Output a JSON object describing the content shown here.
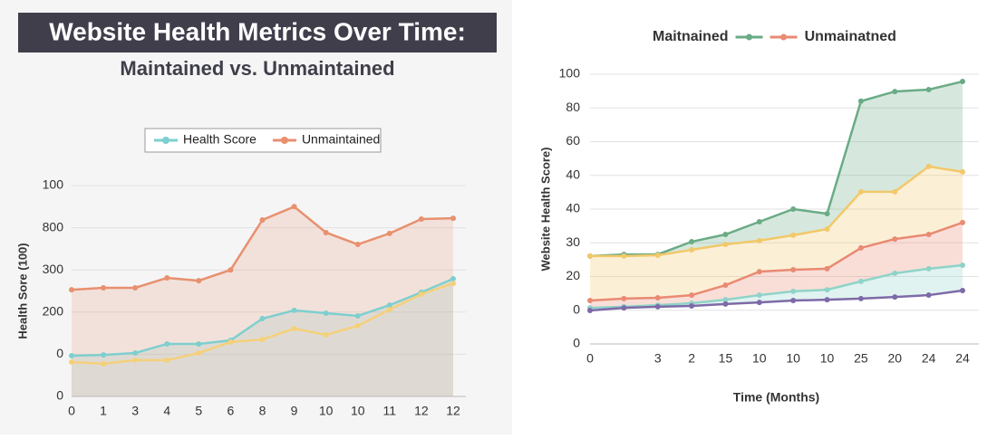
{
  "chart_data": [
    {
      "type": "area",
      "title": "Website Health Metrics Over Time:",
      "subtitle": "Maintained vs. Unmaintained",
      "y_label": "Health Sore (100)",
      "area_fill": "to_baseline",
      "grid": true,
      "categories": [
        "0",
        "1",
        "3",
        "4",
        "5",
        "6",
        "8",
        "9",
        "10",
        "10",
        "11",
        "12",
        "12"
      ],
      "ylim": [
        0,
        100
      ],
      "yticks": [
        0,
        {
          "value": 20,
          "label": "0"
        },
        {
          "value": 40,
          "label": "200"
        },
        {
          "value": 60,
          "label": "300"
        },
        {
          "value": 80,
          "label": "800"
        },
        100
      ],
      "series": [
        {
          "name": "Health Score",
          "color": "#7ecfcf",
          "values": [
            19.3,
            19.7,
            20.6,
            24.9,
            24.9,
            26.6,
            36.9,
            40.8,
            39.5,
            38.2,
            43.3,
            49.4,
            55.8
          ]
        },
        {
          "name": "Unmaintained",
          "color": "#e8906f",
          "values": [
            50.6,
            51.5,
            51.5,
            56.2,
            54.9,
            60,
            83.7,
            90,
            77.7,
            72.1,
            77.3,
            84.1,
            84.5
          ]
        },
        {
          "color": "#f5d07a",
          "values": [
            16.3,
            15.5,
            17.2,
            17.2,
            20.6,
            25.8,
            27,
            32.2,
            29.2,
            33.5,
            41.2,
            48.5,
            53.6
          ]
        }
      ]
    },
    {
      "type": "area",
      "x_label": "Time (Months)",
      "y_label": "Website Health Score)",
      "area_fill": "between_series",
      "grid": true,
      "categories": [
        "0",
        null,
        "3",
        "2",
        "15",
        "10",
        "10",
        "10",
        "25",
        "20",
        "24",
        "24"
      ],
      "ylim": [
        0,
        100
      ],
      "yticks": [
        0,
        {
          "value": 12.5,
          "label": "0"
        },
        {
          "value": 25,
          "label": "20"
        },
        {
          "value": 37.5,
          "label": "30"
        },
        {
          "value": 50,
          "label": "40"
        },
        {
          "value": 62.5,
          "label": "40"
        },
        {
          "value": 75,
          "label": "60"
        },
        {
          "value": 87.5,
          "label": "80"
        },
        100
      ],
      "series": [
        {
          "name": "Maitnained",
          "color": "#6aab86",
          "values": [
            32.6,
            33.2,
            33.2,
            37.9,
            40.6,
            45.3,
            50,
            48.3,
            90,
            93.6,
            94.3,
            97.3
          ]
        },
        {
          "color": "#f2c86a",
          "values": [
            32.6,
            32.6,
            32.9,
            34.9,
            36.9,
            38.3,
            40.3,
            42.6,
            56.4,
            56.4,
            65.8,
            63.8
          ]
        },
        {
          "name": "Unmainatned",
          "color": "#e98a72",
          "values": [
            16.1,
            16.8,
            17.1,
            18.1,
            21.8,
            26.8,
            27.5,
            27.9,
            35.6,
            38.9,
            40.6,
            45
          ]
        },
        {
          "color": "#8fd3c8",
          "values": [
            13.4,
            13.8,
            14.4,
            15.1,
            16.4,
            18.1,
            19.5,
            20.1,
            23.2,
            26.2,
            27.9,
            29.2
          ]
        },
        {
          "color": "#7e6aa8",
          "values": [
            12.4,
            13.4,
            13.8,
            14.1,
            14.8,
            15.4,
            16.1,
            16.4,
            16.8,
            17.4,
            18.1,
            19.8
          ]
        }
      ]
    }
  ]
}
